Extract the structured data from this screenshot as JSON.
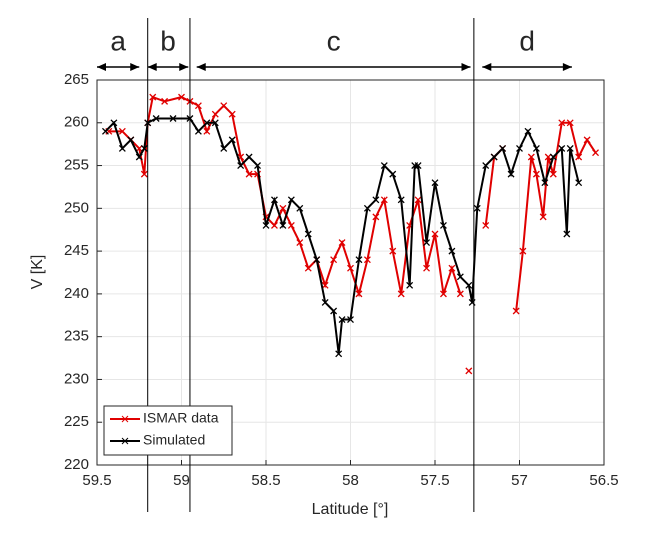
{
  "chart_data": {
    "type": "line",
    "xlabel": "Latitude [°]",
    "ylabel": "V [K]",
    "xlim": [
      59.5,
      56.5
    ],
    "ylim": [
      220,
      265
    ],
    "xticks": [
      59.5,
      59,
      58.5,
      58,
      57.5,
      57,
      56.5
    ],
    "yticks": [
      220,
      225,
      230,
      235,
      240,
      245,
      250,
      255,
      260,
      265
    ],
    "grid": true,
    "legend": "lower left",
    "boundaries": [
      59.2,
      58.95,
      57.27
    ],
    "regions": [
      {
        "label": "a",
        "span": [
          59.5,
          59.25
        ]
      },
      {
        "label": "b",
        "span": [
          59.2,
          58.96
        ]
      },
      {
        "label": "c",
        "span": [
          58.91,
          57.29
        ]
      },
      {
        "label": "d",
        "span": [
          57.22,
          56.69
        ]
      }
    ],
    "series": [
      {
        "name": "ISMAR data",
        "color": "#e00000",
        "x": [
          59.43,
          59.35,
          59.3,
          59.25,
          59.22,
          59.2,
          59.17,
          59.1,
          59.0,
          58.95,
          58.9,
          58.85,
          58.8,
          58.75,
          58.7,
          58.65,
          58.6,
          58.55,
          58.5,
          58.45,
          58.4,
          58.35,
          58.3,
          58.25,
          58.2,
          58.15,
          58.1,
          58.05,
          58.0,
          57.95,
          57.9,
          57.85,
          57.8,
          57.75,
          57.7,
          57.65,
          57.6,
          57.55,
          57.5,
          57.45,
          57.4,
          57.35,
          57.32,
          57.3,
          57.28,
          57.2,
          57.15,
          57.1,
          57.06,
          57.02,
          56.98,
          56.93,
          56.9,
          56.86,
          56.83,
          56.8,
          56.75,
          56.7,
          56.65,
          56.6,
          56.55
        ],
        "values": [
          259,
          259,
          258,
          257,
          254,
          260,
          263,
          262.5,
          263,
          262.5,
          262,
          259,
          261,
          262,
          261,
          256,
          254,
          254,
          249,
          248,
          250,
          248,
          246,
          243,
          244,
          241,
          244,
          246,
          243,
          240,
          244,
          249,
          251,
          245,
          240,
          248,
          251,
          243,
          247,
          240,
          243,
          240,
          null,
          231,
          null,
          248,
          256,
          257,
          null,
          238,
          245,
          256,
          254,
          249,
          256,
          254,
          260,
          260,
          256,
          258,
          256.5
        ]
      },
      {
        "name": "Simulated",
        "color": "#000000",
        "x": [
          59.45,
          59.4,
          59.35,
          59.3,
          59.25,
          59.22,
          59.2,
          59.15,
          59.05,
          58.95,
          58.9,
          58.85,
          58.8,
          58.75,
          58.7,
          58.65,
          58.6,
          58.55,
          58.5,
          58.45,
          58.4,
          58.35,
          58.3,
          58.25,
          58.2,
          58.15,
          58.1,
          58.07,
          58.05,
          58.0,
          57.95,
          57.9,
          57.85,
          57.8,
          57.75,
          57.7,
          57.65,
          57.62,
          57.6,
          57.55,
          57.5,
          57.45,
          57.4,
          57.35,
          57.3,
          57.28,
          57.25,
          57.2,
          57.15,
          57.1,
          57.05,
          57.0,
          56.95,
          56.9,
          56.85,
          56.8,
          56.75,
          56.72,
          56.7,
          56.65
        ],
        "values": [
          259,
          260,
          257,
          258,
          256,
          257,
          260,
          260.5,
          260.5,
          260.5,
          259,
          260,
          260,
          257,
          258,
          255,
          256,
          255,
          248,
          251,
          248,
          251,
          250,
          247,
          244,
          239,
          238,
          233,
          237,
          237,
          244,
          250,
          251,
          255,
          254,
          251,
          241,
          255,
          255,
          246,
          253,
          248,
          245,
          242,
          241,
          239,
          250,
          255,
          256,
          257,
          254,
          257,
          259,
          257,
          253,
          256,
          257,
          247,
          257,
          253
        ]
      }
    ]
  }
}
